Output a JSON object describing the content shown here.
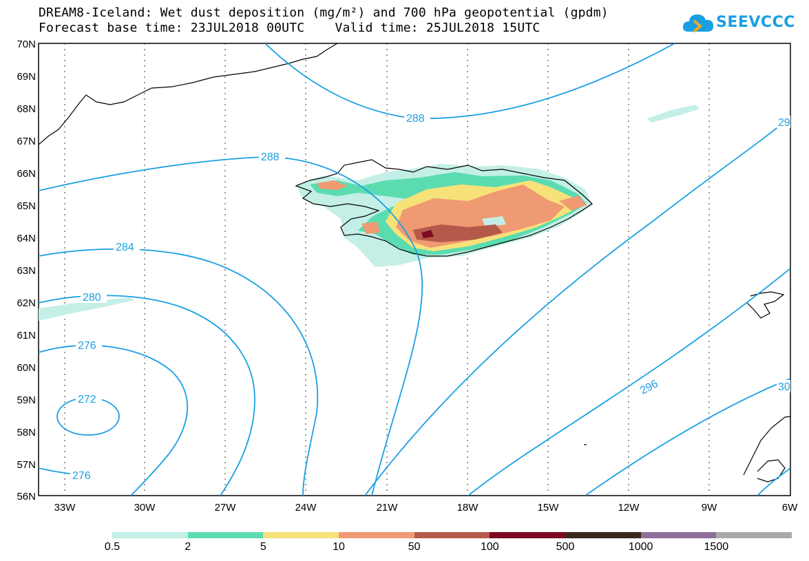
{
  "header": {
    "title_line1": "DREAM8-Iceland: Wet dust deposition (mg/m²) and 700 hPa geopotential (gpdm)",
    "title_line2": "Forecast base time: 23JUL2018 00UTC    Valid time: 25JUL2018 15UTC",
    "logo_text": "SEEVCCC",
    "logo_icon": "cloud-icon"
  },
  "map": {
    "lat_labels": [
      "70N",
      "69N",
      "68N",
      "67N",
      "66N",
      "65N",
      "64N",
      "63N",
      "62N",
      "61N",
      "60N",
      "59N",
      "58N",
      "57N",
      "56N"
    ],
    "lon_labels": [
      "33W",
      "30W",
      "27W",
      "24W",
      "21W",
      "18W",
      "15W",
      "12W",
      "9W",
      "6W"
    ],
    "lat_range": [
      56,
      70
    ],
    "lon_range": [
      -34.5,
      -6
    ],
    "grid": "dotted",
    "contour_labels": [
      "288",
      "288",
      "284",
      "280",
      "276",
      "276",
      "272",
      "296",
      "29",
      "30"
    ],
    "contour_color": "#1a9fe3",
    "coastline_color": "#000000"
  },
  "colorbar": {
    "colors": [
      "#c3efe6",
      "#5bdcb0",
      "#f7e27a",
      "#ef9a72",
      "#b55a4a",
      "#7e0a23",
      "#3a2a1c",
      "#8f6e9a",
      "#aaaaaa"
    ],
    "labels": [
      "0.5",
      "2",
      "5",
      "10",
      "50",
      "100",
      "500",
      "1000",
      "1500"
    ]
  }
}
